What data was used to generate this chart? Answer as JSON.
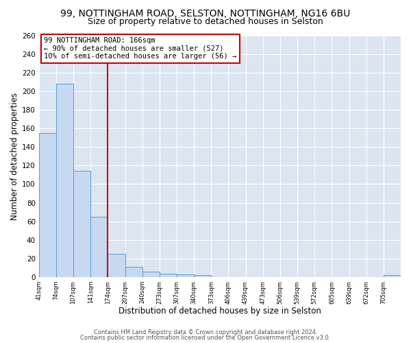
{
  "title": "99, NOTTINGHAM ROAD, SELSTON, NOTTINGHAM, NG16 6BU",
  "subtitle": "Size of property relative to detached houses in Selston",
  "xlabel": "Distribution of detached houses by size in Selston",
  "ylabel": "Number of detached properties",
  "bar_values": [
    155,
    208,
    114,
    65,
    25,
    11,
    6,
    4,
    3,
    2,
    0,
    0,
    0,
    0,
    0,
    0,
    0,
    0,
    0,
    0,
    2
  ],
  "bar_labels": [
    "41sqm",
    "74sqm",
    "107sqm",
    "141sqm",
    "174sqm",
    "207sqm",
    "240sqm",
    "273sqm",
    "307sqm",
    "340sqm",
    "373sqm",
    "406sqm",
    "439sqm",
    "473sqm",
    "506sqm",
    "539sqm",
    "572sqm",
    "605sqm",
    "639sqm",
    "672sqm",
    "705sqm"
  ],
  "bar_color": "#c6d9f0",
  "bar_edge_color": "#5b9bd5",
  "vline_x": 4,
  "vline_color": "#cc0000",
  "annotation_text": "99 NOTTINGHAM ROAD: 166sqm\n← 90% of detached houses are smaller (527)\n10% of semi-detached houses are larger (56) →",
  "annotation_box_color": "#ffffff",
  "annotation_box_edge": "#cc0000",
  "ylim": [
    0,
    260
  ],
  "yticks": [
    0,
    20,
    40,
    60,
    80,
    100,
    120,
    140,
    160,
    180,
    200,
    220,
    240,
    260
  ],
  "fig_bg_color": "#ffffff",
  "plot_bg_color": "#dce6f1",
  "footer1": "Contains HM Land Registry data © Crown copyright and database right 2024.",
  "footer2": "Contains public sector information licensed under the Open Government Licence v3.0.",
  "title_fontsize": 10,
  "subtitle_fontsize": 9,
  "xlabel_fontsize": 8.5,
  "ylabel_fontsize": 8.5
}
